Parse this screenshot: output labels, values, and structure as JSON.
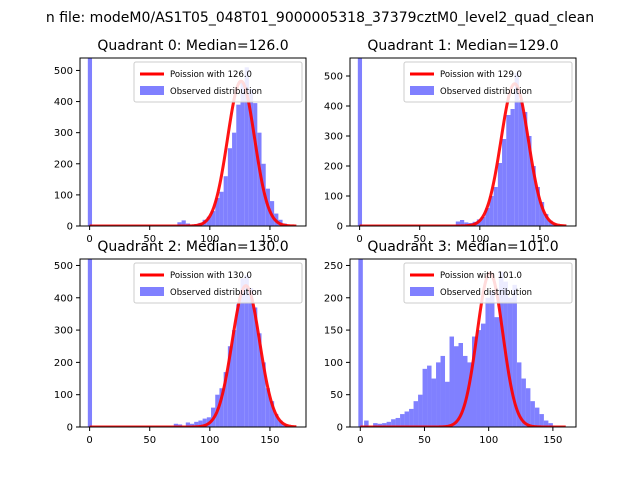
{
  "figure": {
    "suptitle": "n file: modeM0/AS1T05_048T01_9000005318_37379cztM0_level2_quad_clean"
  },
  "legend_labels_common": {
    "observed": "Observed distribution"
  },
  "colors": {
    "hist": "#8080ff",
    "poisson": "#ff0000"
  },
  "chart_data": [
    {
      "type": "bar",
      "title": "Quadrant 0: Median=126.0",
      "legend": {
        "poisson": "Poission with 126.0",
        "observed": "Observed distribution",
        "position": "upper-right"
      },
      "xlim": [
        -8,
        180
      ],
      "ylim": [
        0,
        540
      ],
      "xticks": [
        0,
        50,
        100,
        150
      ],
      "yticks": [
        0,
        100,
        200,
        300,
        400,
        500
      ],
      "bin_width": 3.5,
      "hist_bins": [
        [
          -1.5,
          540
        ],
        [
          73,
          12
        ],
        [
          76.5,
          18
        ],
        [
          80,
          8
        ],
        [
          83.5,
          4
        ],
        [
          87,
          6
        ],
        [
          90.5,
          10
        ],
        [
          94,
          20
        ],
        [
          97.5,
          30
        ],
        [
          101,
          48
        ],
        [
          104.5,
          90
        ],
        [
          108,
          110
        ],
        [
          111.5,
          160
        ],
        [
          115,
          250
        ],
        [
          118.5,
          300
        ],
        [
          122,
          390
        ],
        [
          125.5,
          460
        ],
        [
          129,
          510
        ],
        [
          132.5,
          440
        ],
        [
          136,
          395
        ],
        [
          139.5,
          300
        ],
        [
          143,
          200
        ],
        [
          146.5,
          120
        ],
        [
          150,
          80
        ],
        [
          153.5,
          40
        ],
        [
          157,
          20
        ],
        [
          160.5,
          8
        ]
      ],
      "poisson_mean": 126.0,
      "poisson_scale": 13100,
      "poisson_x": [
        0,
        172
      ]
    },
    {
      "type": "bar",
      "title": "Quadrant 1: Median=129.0",
      "legend": {
        "poisson": "Poission with 129.0",
        "observed": "Observed distribution",
        "position": "upper-right"
      },
      "xlim": [
        -8,
        180
      ],
      "ylim": [
        0,
        560
      ],
      "xticks": [
        0,
        50,
        100,
        150
      ],
      "yticks": [
        0,
        100,
        200,
        300,
        400,
        500
      ],
      "bin_width": 3.5,
      "hist_bins": [
        [
          -1.5,
          560
        ],
        [
          80,
          15
        ],
        [
          83.5,
          20
        ],
        [
          87,
          12
        ],
        [
          90.5,
          10
        ],
        [
          94,
          14
        ],
        [
          97.5,
          22
        ],
        [
          101,
          30
        ],
        [
          104.5,
          60
        ],
        [
          108,
          100
        ],
        [
          111.5,
          130
        ],
        [
          115,
          210
        ],
        [
          118.5,
          290
        ],
        [
          122,
          370
        ],
        [
          125.5,
          390
        ],
        [
          129,
          510
        ],
        [
          132.5,
          420
        ],
        [
          136,
          380
        ],
        [
          139.5,
          300
        ],
        [
          143,
          200
        ],
        [
          146.5,
          130
        ],
        [
          150,
          80
        ],
        [
          153.5,
          40
        ],
        [
          157,
          18
        ],
        [
          160.5,
          8
        ]
      ],
      "poisson_mean": 129.0,
      "poisson_scale": 13500,
      "poisson_x": [
        0,
        172
      ]
    },
    {
      "type": "bar",
      "title": "Quadrant 2: Median=130.0",
      "legend": {
        "poisson": "Poission with 130.0",
        "observed": "Observed distribution",
        "position": "upper-right"
      },
      "xlim": [
        -8,
        180
      ],
      "ylim": [
        0,
        520
      ],
      "xticks": [
        0,
        50,
        100,
        150
      ],
      "yticks": [
        0,
        100,
        200,
        300,
        400,
        500
      ],
      "bin_width": 3.5,
      "hist_bins": [
        [
          -1.5,
          520
        ],
        [
          70,
          10
        ],
        [
          73.5,
          8
        ],
        [
          80,
          14
        ],
        [
          83.5,
          10
        ],
        [
          87,
          16
        ],
        [
          90.5,
          20
        ],
        [
          94,
          26
        ],
        [
          97.5,
          30
        ],
        [
          101,
          60
        ],
        [
          104.5,
          100
        ],
        [
          108,
          120
        ],
        [
          111.5,
          170
        ],
        [
          115,
          250
        ],
        [
          118.5,
          300
        ],
        [
          122,
          380
        ],
        [
          125.5,
          460
        ],
        [
          129,
          470
        ],
        [
          132.5,
          430
        ],
        [
          136,
          370
        ],
        [
          139.5,
          290
        ],
        [
          143,
          200
        ],
        [
          146.5,
          120
        ],
        [
          150,
          80
        ],
        [
          153.5,
          40
        ],
        [
          157,
          20
        ],
        [
          160.5,
          8
        ]
      ],
      "poisson_mean": 130.0,
      "poisson_scale": 12500,
      "poisson_x": [
        0,
        172
      ]
    },
    {
      "type": "bar",
      "title": "Quadrant 3: Median=101.0",
      "legend": {
        "poisson": "Poission with 101.0",
        "observed": "Observed distribution",
        "position": "upper-right"
      },
      "xlim": [
        -8,
        168
      ],
      "ylim": [
        0,
        260
      ],
      "xticks": [
        0,
        50,
        100,
        150
      ],
      "yticks": [
        0,
        50,
        100,
        150,
        200,
        250
      ],
      "bin_width": 3.5,
      "hist_bins": [
        [
          -1.5,
          260
        ],
        [
          3,
          10
        ],
        [
          10,
          6
        ],
        [
          13.5,
          5
        ],
        [
          17,
          6
        ],
        [
          20.5,
          8
        ],
        [
          24,
          12
        ],
        [
          27.5,
          14
        ],
        [
          31,
          20
        ],
        [
          34.5,
          24
        ],
        [
          38,
          28
        ],
        [
          41.5,
          40
        ],
        [
          45,
          50
        ],
        [
          48.5,
          90
        ],
        [
          52,
          95
        ],
        [
          55.5,
          75
        ],
        [
          59,
          100
        ],
        [
          62.5,
          110
        ],
        [
          66,
          70
        ],
        [
          69.5,
          140
        ],
        [
          73,
          125
        ],
        [
          76.5,
          130
        ],
        [
          80,
          110
        ],
        [
          83.5,
          100
        ],
        [
          87,
          140
        ],
        [
          90.5,
          150
        ],
        [
          94,
          160
        ],
        [
          97.5,
          200
        ],
        [
          101,
          210
        ],
        [
          104.5,
          170
        ],
        [
          108,
          240
        ],
        [
          111.5,
          225
        ],
        [
          115,
          200
        ],
        [
          118.5,
          220
        ],
        [
          122,
          100
        ],
        [
          125.5,
          75
        ],
        [
          129,
          60
        ],
        [
          132.5,
          40
        ],
        [
          136,
          30
        ],
        [
          139.5,
          20
        ],
        [
          143,
          10
        ],
        [
          146.5,
          6
        ]
      ],
      "poisson_mean": 101.0,
      "poisson_scale": 6000,
      "poisson_x": [
        0,
        160
      ]
    }
  ]
}
